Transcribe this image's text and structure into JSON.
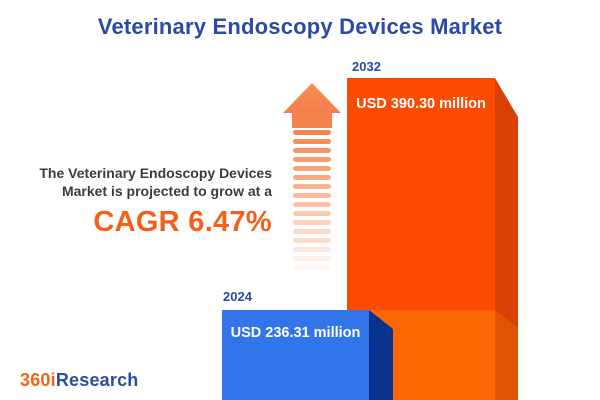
{
  "title": "Veterinary Endoscopy Devices Market",
  "description": {
    "line1": "The Veterinary Endoscopy Devices",
    "line2": "Market is projected to grow at a",
    "cagr": "CAGR 6.47%"
  },
  "chart_data": {
    "type": "bar",
    "title": "Veterinary Endoscopy Devices Market",
    "categories": [
      "2024",
      "2032"
    ],
    "values": [
      236.31,
      390.3
    ],
    "unit": "USD million",
    "value_labels": [
      "USD 236.31 million",
      "USD 390.30 million"
    ],
    "cagr_percent": 6.47,
    "growth_annotation": "The Veterinary Endoscopy Devices Market is projected to grow at a CAGR 6.47%",
    "legend": false,
    "grid": false,
    "bar_colors": {
      "bar_2024_front": "#3274E9",
      "bar_2024_side": "#0A338F",
      "bar_2032_front": "#FB4A02",
      "bar_2032_side": "#D84103",
      "bar_2032_base_front": "#FE6603",
      "bar_2032_base_side": "#DF5505"
    }
  },
  "colors": {
    "title_blue": "#2B4AA6",
    "year_label_blue": "#2B4AA6",
    "description_gray": "#3C3C3C",
    "cagr_orange": "#F4601A",
    "arrow_salmon": "#F5854E",
    "logo_orange": "#F26419",
    "logo_blue": "#2B4EA2"
  },
  "logo": {
    "part1": "360i",
    "part2": "Research"
  }
}
